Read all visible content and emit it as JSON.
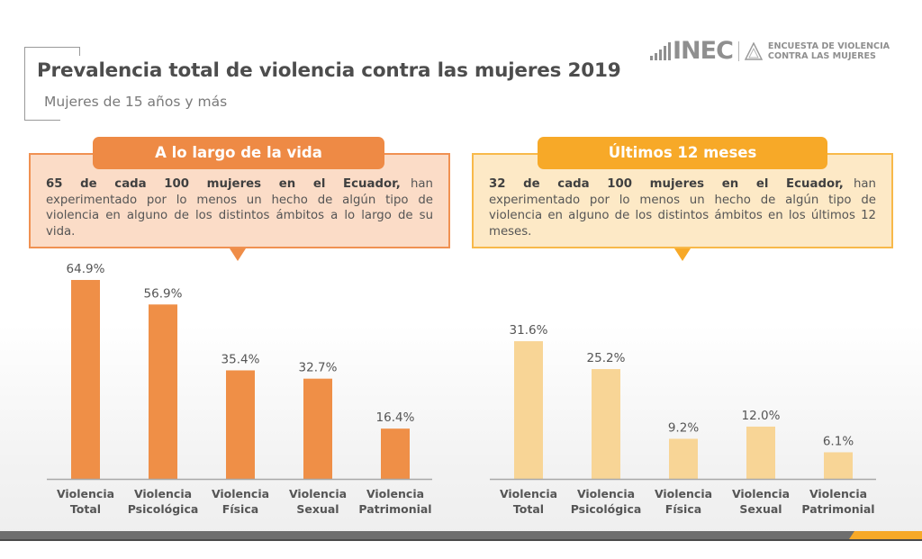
{
  "header": {
    "title": "Prevalencia total de violencia contra las mujeres 2019",
    "subtitle": "Mujeres de 15 años y más"
  },
  "logo": {
    "brand": "INEC",
    "survey_line1": "ENCUESTA DE VIOLENCIA",
    "survey_line2": "CONTRA LAS MUJERES",
    "icon": "bars-icon"
  },
  "panels": [
    {
      "tab_label": "A lo largo de la vida",
      "highlight": "65 de cada 100 mujeres en el Ecuador,",
      "text": " han experimentado  por lo menos  un hecho de algún tipo de violencia en alguno de los distintos ámbitos a lo largo de su vida.",
      "accent_color": "#ee8a45",
      "box_color": "#fbdcc7"
    },
    {
      "tab_label": "Últimos 12 meses",
      "highlight": "32 de cada 100 mujeres en el Ecuador,",
      "text": " han experimentado  por lo menos  un hecho de algún tipo de violencia en alguno de los distintos ámbitos en los últimos 12 meses.",
      "accent_color": "#f7a928",
      "box_color": "#fde9c6"
    }
  ],
  "chart_data": [
    {
      "type": "bar",
      "title": "A lo largo de la vida",
      "categories": [
        "Violencia Total",
        "Violencia Psicológica",
        "Violencia Física",
        "Violencia Sexual",
        "Violencia Patrimonial"
      ],
      "category_lines": [
        [
          "Violencia",
          "Total"
        ],
        [
          "Violencia",
          "Psicológica"
        ],
        [
          "Violencia",
          "Física"
        ],
        [
          "Violencia",
          "Sexual"
        ],
        [
          "Violencia",
          "Patrimonial"
        ]
      ],
      "values": [
        64.9,
        56.9,
        35.4,
        32.7,
        16.4
      ],
      "value_labels": [
        "64.9%",
        "56.9%",
        "35.4%",
        "32.7%",
        "16.4%"
      ],
      "unit": "%",
      "color": "#ef8f47",
      "xlabel": "",
      "ylabel": "",
      "ylim": [
        0,
        65
      ],
      "grid": false
    },
    {
      "type": "bar",
      "title": "Últimos 12 meses",
      "categories": [
        "Violencia Total",
        "Violencia Psicológica",
        "Violencia Física",
        "Violencia Sexual",
        "Violencia Patrimonial"
      ],
      "category_lines": [
        [
          "Violencia",
          "Total"
        ],
        [
          "Violencia",
          "Psicológica"
        ],
        [
          "Violencia",
          "Física"
        ],
        [
          "Violencia",
          "Sexual"
        ],
        [
          "Violencia",
          "Patrimonial"
        ]
      ],
      "values": [
        31.6,
        25.2,
        9.2,
        12.0,
        6.1
      ],
      "value_labels": [
        "31.6%",
        "25.2%",
        "9.2%",
        "12.0%",
        "6.1%"
      ],
      "unit": "%",
      "color": "#f8d596",
      "xlabel": "",
      "ylabel": "",
      "ylim": [
        0,
        32
      ],
      "grid": false
    }
  ]
}
